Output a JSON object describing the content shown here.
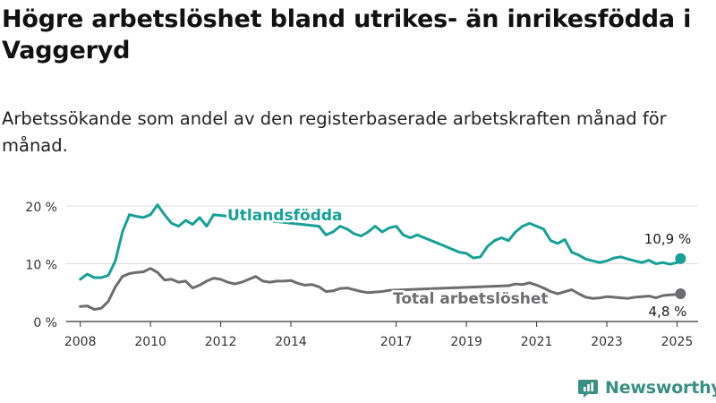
{
  "title": "Högre arbetslöshet bland utrikes- än inrikesfödda i Vaggeryd",
  "subtitle": "Arbetssökande som andel av den registerbaserade arbetskraften månad för månad.",
  "brand": {
    "name": "Newsworthy",
    "icon": "bar-chart-logo-icon",
    "color": "#3a8f83"
  },
  "chart_data": {
    "type": "line",
    "x_unit": "year",
    "xlim": [
      2007.6,
      2025.6
    ],
    "ylim": [
      0,
      20
    ],
    "y_ticks": [
      0,
      10,
      20
    ],
    "y_tick_labels": [
      "0 %",
      "10 %",
      "20 %"
    ],
    "x_ticks": [
      2008,
      2010,
      2012,
      2014,
      2017,
      2019,
      2021,
      2023,
      2025
    ],
    "x_tick_labels": [
      "2008",
      "2010",
      "2012",
      "2014",
      "2017",
      "2019",
      "2021",
      "2023",
      "2025"
    ],
    "grid": true,
    "series": [
      {
        "name": "Utlandsfödda",
        "color": "#16a096",
        "end_label": "10,9 %",
        "x": [
          2008.0,
          2008.2,
          2008.4,
          2008.6,
          2008.8,
          2009.0,
          2009.2,
          2009.4,
          2009.6,
          2009.8,
          2010.0,
          2010.2,
          2010.4,
          2010.6,
          2010.8,
          2011.0,
          2011.2,
          2011.4,
          2011.6,
          2011.8,
          2014.8,
          2015.0,
          2015.2,
          2015.4,
          2015.6,
          2015.8,
          2016.0,
          2016.2,
          2016.4,
          2016.6,
          2016.8,
          2017.0,
          2017.2,
          2017.4,
          2017.6,
          2017.8,
          2018.0,
          2018.2,
          2018.4,
          2018.6,
          2018.8,
          2019.0,
          2019.2,
          2019.4,
          2019.6,
          2019.8,
          2020.0,
          2020.2,
          2020.4,
          2020.6,
          2020.8,
          2021.0,
          2021.2,
          2021.4,
          2021.6,
          2021.8,
          2022.0,
          2022.2,
          2022.4,
          2022.6,
          2022.8,
          2023.0,
          2023.2,
          2023.4,
          2023.6,
          2023.8,
          2024.0,
          2024.2,
          2024.4,
          2024.6,
          2024.8,
          2025.0,
          2025.1
        ],
        "values": [
          7.3,
          8.2,
          7.6,
          7.6,
          8.0,
          10.5,
          15.5,
          18.5,
          18.2,
          18.0,
          18.5,
          20.2,
          18.5,
          17.0,
          16.5,
          17.5,
          16.8,
          18.0,
          16.5,
          18.5,
          16.5,
          15.0,
          15.5,
          16.5,
          16.0,
          15.2,
          14.8,
          15.5,
          16.5,
          15.5,
          16.2,
          16.5,
          15.0,
          14.5,
          15.0,
          14.5,
          14.0,
          13.5,
          13.0,
          12.5,
          12.0,
          11.8,
          11.0,
          11.2,
          13.0,
          14.0,
          14.5,
          14.0,
          15.5,
          16.5,
          17.0,
          16.5,
          16.0,
          14.0,
          13.5,
          14.2,
          12.0,
          11.5,
          10.8,
          10.5,
          10.2,
          10.5,
          11.0,
          11.2,
          10.8,
          10.5,
          10.2,
          10.6,
          10.0,
          10.2,
          9.9,
          10.2,
          10.9
        ]
      },
      {
        "name": "Total arbetslöshet",
        "color": "#6d6d6f",
        "end_label": "4,8 %",
        "x": [
          2008.0,
          2008.2,
          2008.4,
          2008.6,
          2008.8,
          2009.0,
          2009.2,
          2009.4,
          2009.6,
          2009.8,
          2010.0,
          2010.2,
          2010.4,
          2010.6,
          2010.8,
          2011.0,
          2011.2,
          2011.4,
          2011.6,
          2011.8,
          2012.0,
          2012.2,
          2012.4,
          2012.6,
          2012.8,
          2013.0,
          2013.2,
          2013.4,
          2013.6,
          2013.8,
          2014.0,
          2014.2,
          2014.4,
          2014.6,
          2014.8,
          2015.0,
          2015.2,
          2015.4,
          2015.6,
          2015.8,
          2016.0,
          2016.2,
          2016.4,
          2016.6,
          2016.8,
          2020.2,
          2020.4,
          2020.6,
          2020.8,
          2021.0,
          2021.2,
          2021.4,
          2021.6,
          2022.0,
          2022.2,
          2022.4,
          2022.6,
          2022.8,
          2023.0,
          2023.2,
          2023.4,
          2023.6,
          2023.8,
          2024.0,
          2024.2,
          2024.4,
          2024.6,
          2024.8,
          2025.0,
          2025.1
        ],
        "values": [
          2.6,
          2.7,
          2.1,
          2.3,
          3.5,
          6.0,
          7.8,
          8.3,
          8.5,
          8.6,
          9.2,
          8.5,
          7.2,
          7.3,
          6.8,
          7.0,
          5.8,
          6.3,
          7.0,
          7.5,
          7.3,
          6.8,
          6.5,
          6.8,
          7.3,
          7.8,
          7.0,
          6.8,
          7.0,
          7.0,
          7.1,
          6.6,
          6.3,
          6.4,
          6.0,
          5.2,
          5.3,
          5.7,
          5.8,
          5.5,
          5.2,
          5.0,
          5.1,
          5.2,
          5.4,
          6.2,
          6.5,
          6.4,
          6.7,
          6.3,
          5.8,
          5.2,
          4.8,
          5.5,
          4.8,
          4.2,
          4.0,
          4.1,
          4.3,
          4.2,
          4.1,
          4.0,
          4.2,
          4.3,
          4.4,
          4.1,
          4.5,
          4.6,
          4.7,
          4.8
        ]
      }
    ]
  }
}
